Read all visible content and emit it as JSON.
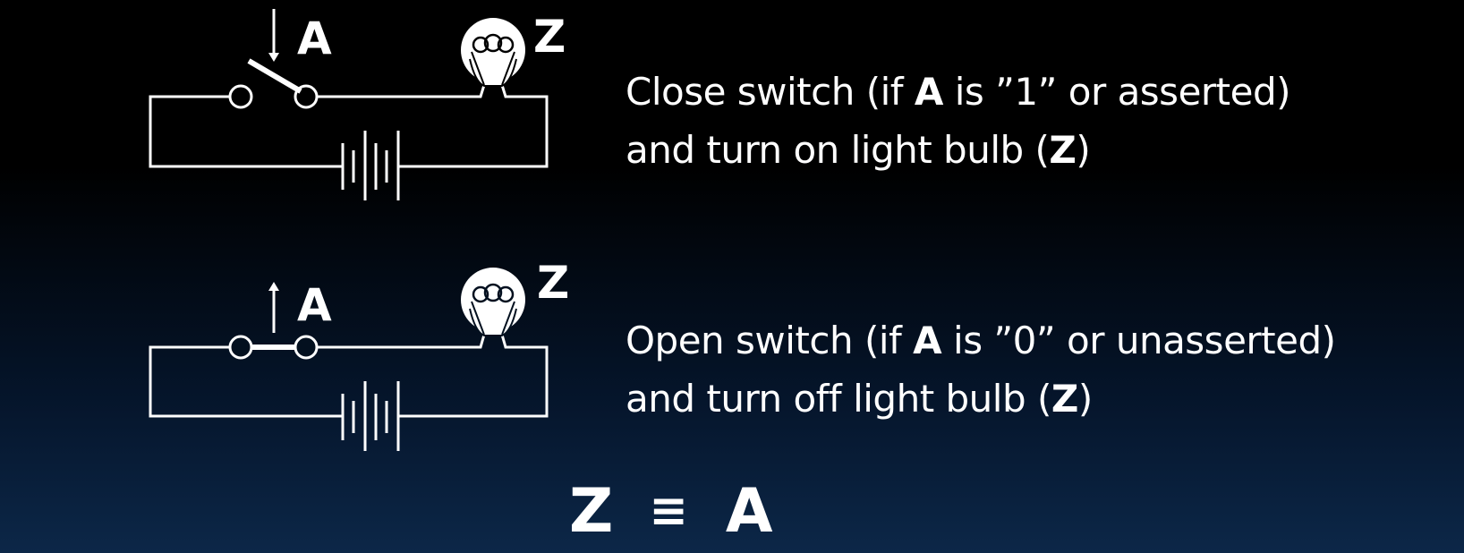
{
  "colors": {
    "background_top": "#000000",
    "background_bottom": "#0c2748",
    "foreground": "#ffffff"
  },
  "closed_circuit": {
    "switch_label": "A",
    "bulb_label": "Z",
    "arrow": "down",
    "switch_state": "closed",
    "description": {
      "line1_pre": "Close switch (if ",
      "line1_bold": "A",
      "line1_post": " is ”1” or asserted)",
      "line2_pre": "and turn on light bulb (",
      "line2_bold": "Z",
      "line2_post": ")"
    }
  },
  "open_circuit": {
    "switch_label": "A",
    "bulb_label": "Z",
    "arrow": "up",
    "switch_state": "open",
    "description": {
      "line1_pre": "Open switch (if ",
      "line1_bold": "A",
      "line1_post": " is ”0” or unasserted)",
      "line2_pre": "and turn off light bulb (",
      "line2_bold": "Z",
      "line2_post": ")"
    }
  },
  "equation": {
    "left": "Z",
    "operator": "≡",
    "right": "A"
  }
}
